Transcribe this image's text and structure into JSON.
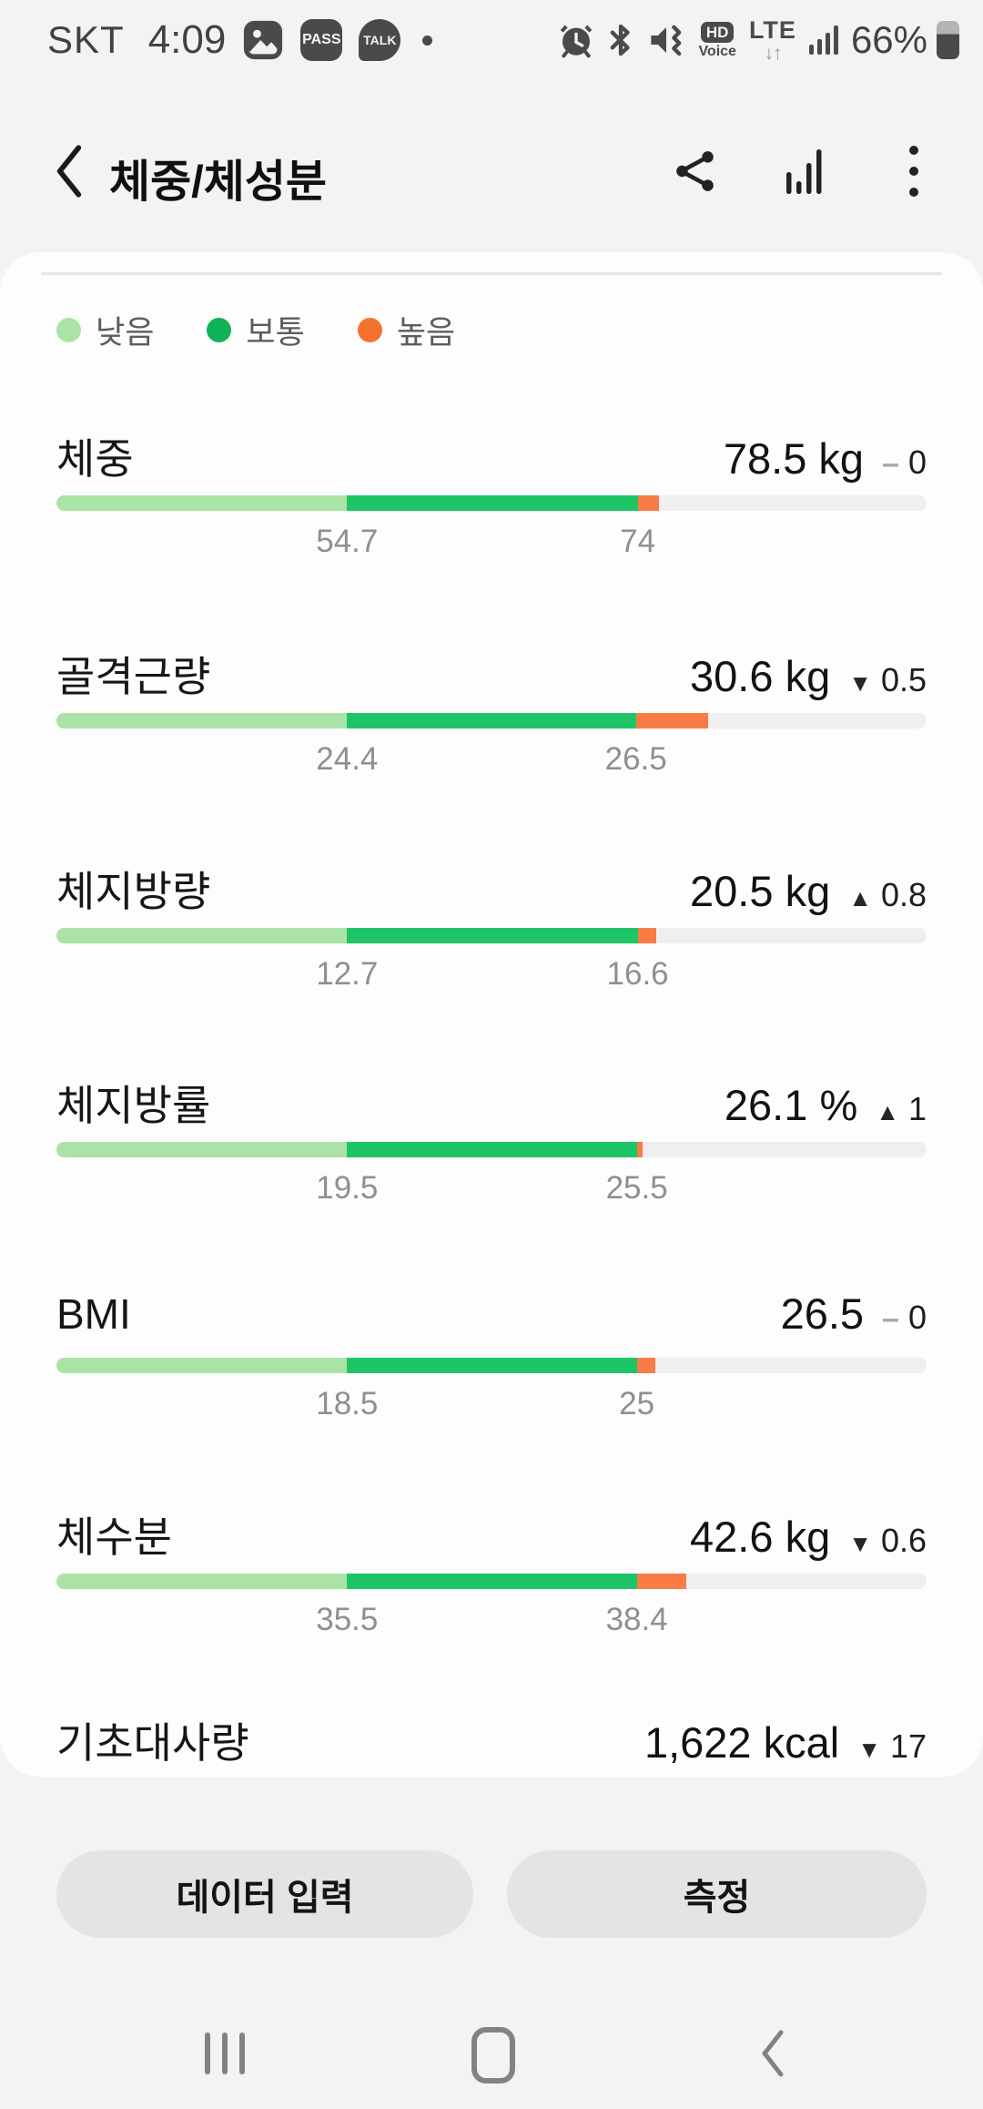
{
  "status_bar": {
    "carrier": "SKT",
    "time": "4:09",
    "badges": {
      "pass": "PASS",
      "talk": "TALK"
    },
    "hd_voice": {
      "line1": "HD",
      "line2": "Voice"
    },
    "network": "LTE",
    "network_arrows": "↓↑",
    "battery_percent": "66%"
  },
  "header": {
    "title": "체중/체성분"
  },
  "legend": {
    "items": [
      {
        "label": "낮음",
        "color": "#abe3a6"
      },
      {
        "label": "보통",
        "color": "#0fb357"
      },
      {
        "label": "높음",
        "color": "#f4722e"
      }
    ]
  },
  "icons": {
    "change_up": "▲",
    "change_down": "▼",
    "change_none": "–"
  },
  "colors": {
    "bar_low": "#abe3a6",
    "bar_normal": "#1dc566",
    "bar_high": "#f97c45",
    "bar_track": "#efefef"
  },
  "metrics": [
    {
      "label": "체중",
      "value": "78.5",
      "unit": "kg",
      "change_dir": "none",
      "change_amount": "0",
      "range_labels": [
        "54.7",
        "74"
      ],
      "bar": {
        "low_end": 0.334,
        "normal_end": 0.668,
        "high_end": 0.692
      }
    },
    {
      "label": "골격근량",
      "value": "30.6",
      "unit": "kg",
      "change_dir": "down",
      "change_amount": "0.5",
      "range_labels": [
        "24.4",
        "26.5"
      ],
      "bar": {
        "low_end": 0.334,
        "normal_end": 0.666,
        "high_end": 0.749
      }
    },
    {
      "label": "체지방량",
      "value": "20.5",
      "unit": "kg",
      "change_dir": "up",
      "change_amount": "0.8",
      "range_labels": [
        "12.7",
        "16.6"
      ],
      "bar": {
        "low_end": 0.334,
        "normal_end": 0.668,
        "high_end": 0.689
      }
    },
    {
      "label": "체지방률",
      "value": "26.1",
      "unit": "%",
      "change_dir": "up",
      "change_amount": "1",
      "range_labels": [
        "19.5",
        "25.5"
      ],
      "bar": {
        "low_end": 0.334,
        "normal_end": 0.667,
        "high_end": 0.674
      }
    },
    {
      "label": "BMI",
      "value": "26.5",
      "unit": "",
      "change_dir": "none",
      "change_amount": "0",
      "range_labels": [
        "18.5",
        "25"
      ],
      "bar": {
        "low_end": 0.334,
        "normal_end": 0.667,
        "high_end": 0.688
      }
    },
    {
      "label": "체수분",
      "value": "42.6",
      "unit": "kg",
      "change_dir": "down",
      "change_amount": "0.6",
      "range_labels": [
        "35.5",
        "38.4"
      ],
      "bar": {
        "low_end": 0.334,
        "normal_end": 0.667,
        "high_end": 0.724
      }
    },
    {
      "label": "기초대사량",
      "value": "1,622",
      "unit": "kcal",
      "change_dir": "down",
      "change_amount": "17",
      "range_labels": null,
      "bar": null
    }
  ],
  "footer": {
    "enter_data_label": "데이터 입력",
    "measure_label": "측정"
  }
}
